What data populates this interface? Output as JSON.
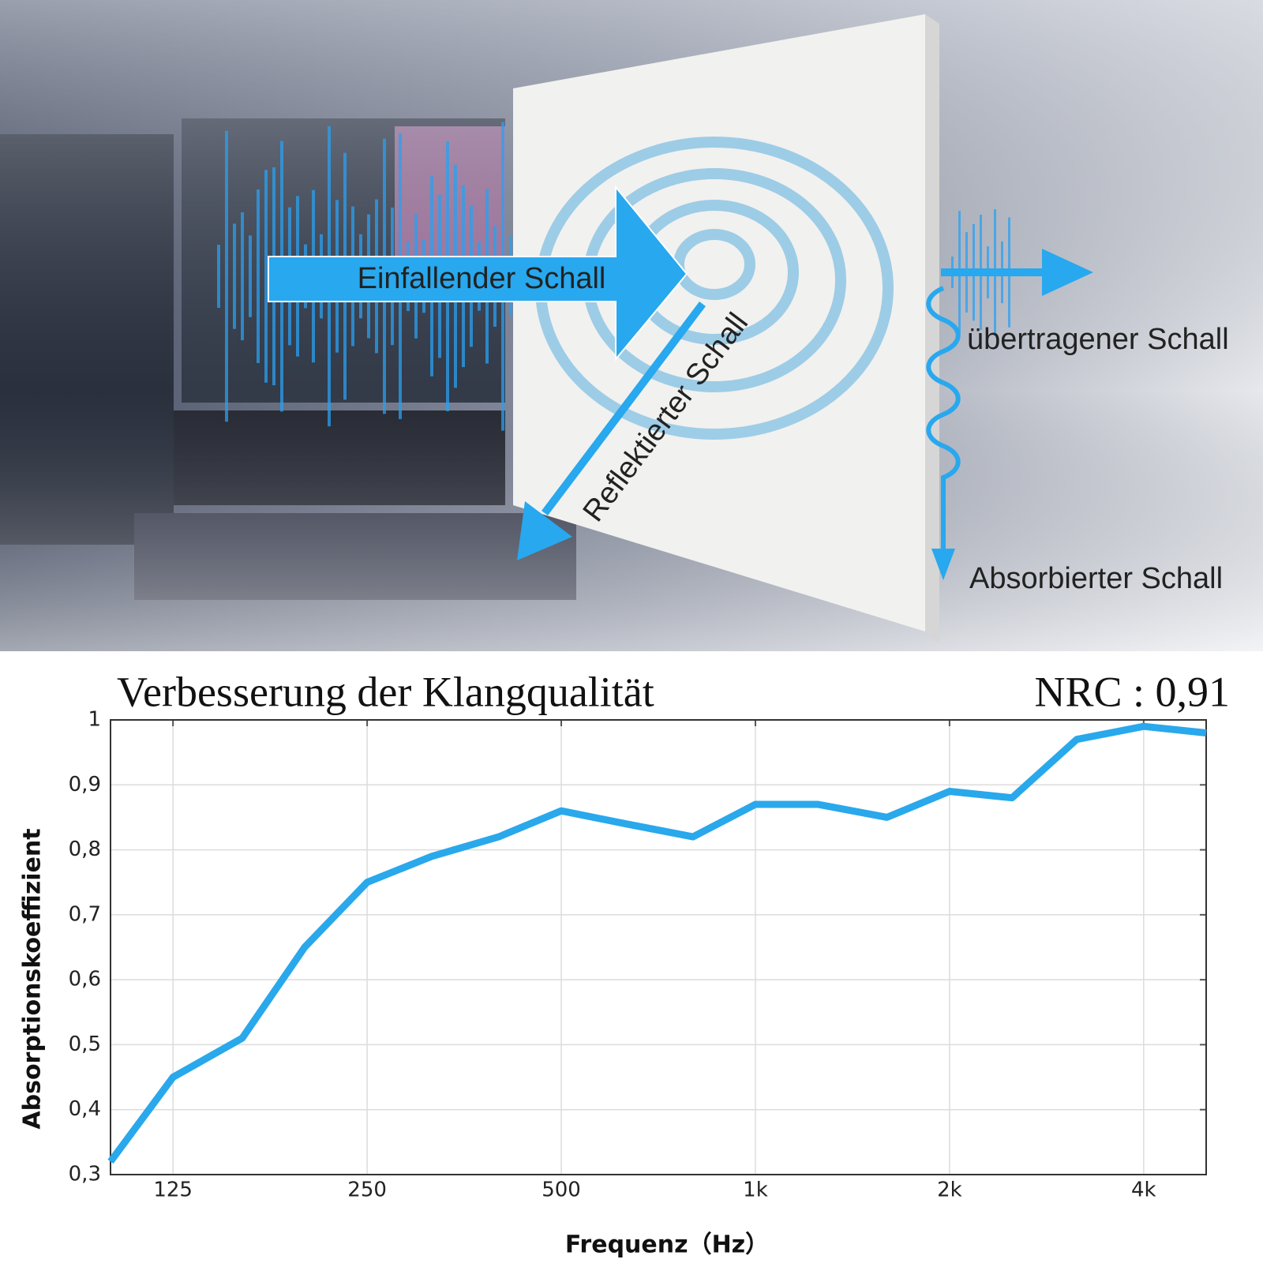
{
  "illustration": {
    "incident": "Einfallender Schall",
    "reflected": "Reflektierter Schall",
    "transmitted": "übertragener Schall",
    "absorbed": "Absorbierter Schall"
  },
  "chart_data": {
    "type": "line",
    "title": "Verbesserung der Klangqualität",
    "annotation": "NRC : 0,91",
    "x_label": "Frequenz（Hz）",
    "y_label": "Absorptionskoeffizient",
    "x": [
      100,
      125,
      160,
      200,
      250,
      315,
      400,
      500,
      630,
      800,
      1000,
      1250,
      1600,
      2000,
      2500,
      3150,
      4000,
      5000
    ],
    "values": [
      0.32,
      0.45,
      0.51,
      0.65,
      0.75,
      0.79,
      0.82,
      0.86,
      0.84,
      0.82,
      0.87,
      0.87,
      0.85,
      0.89,
      0.88,
      0.97,
      0.99,
      0.98
    ],
    "color": "#29a8ec",
    "x_log": true,
    "grid": true,
    "xlim": [
      100,
      5000
    ],
    "xticks": [
      125,
      250,
      500,
      {
        "value": 1000,
        "label": "1k"
      },
      {
        "value": 2000,
        "label": "2k"
      },
      {
        "value": 4000,
        "label": "4k"
      }
    ],
    "ylim": [
      0.3,
      1
    ],
    "yticks": [
      {
        "value": 0.3,
        "label": "0,3"
      },
      {
        "value": 0.4,
        "label": "0,4"
      },
      {
        "value": 0.5,
        "label": "0,5"
      },
      {
        "value": 0.6,
        "label": "0,6"
      },
      {
        "value": 0.7,
        "label": "0,7"
      },
      {
        "value": 0.8,
        "label": "0,8"
      },
      {
        "value": 0.9,
        "label": "0,9"
      },
      1
    ]
  }
}
